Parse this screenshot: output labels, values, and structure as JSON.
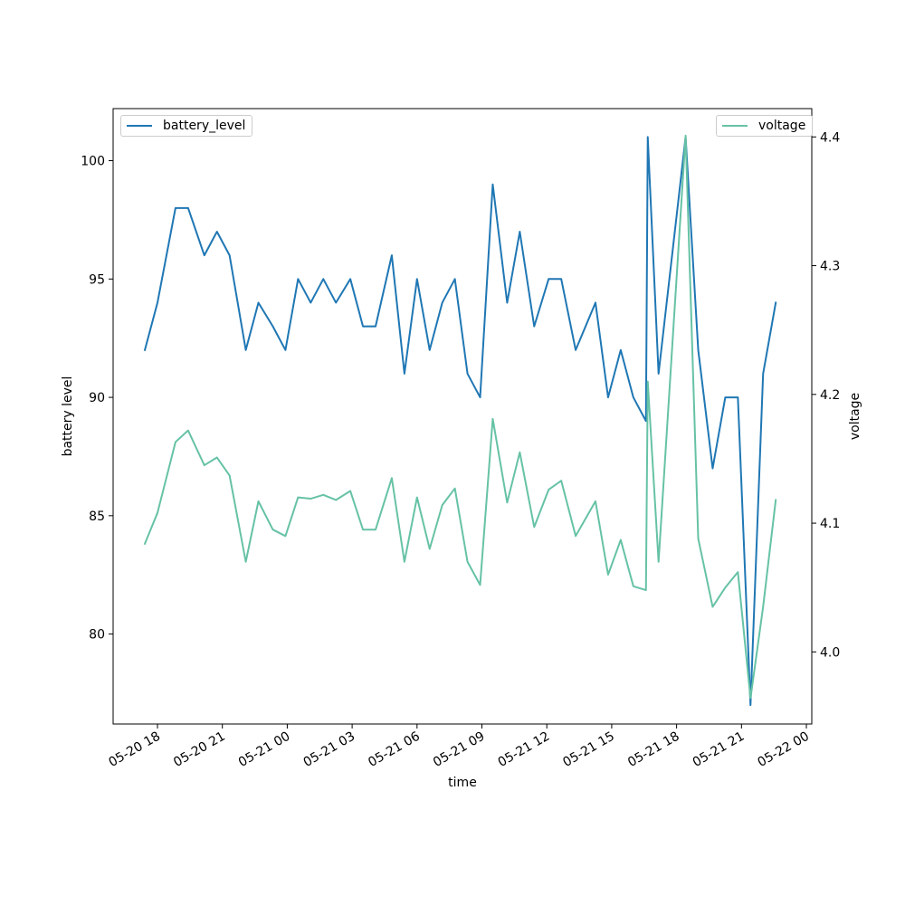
{
  "chart_data": {
    "type": "line",
    "xlabel": "time",
    "ylabel_left": "battery level",
    "ylabel_right": "voltage",
    "x_tick_labels": [
      "05-20 18",
      "05-20 21",
      "05-21 00",
      "05-21 03",
      "05-21 06",
      "05-21 09",
      "05-21 12",
      "05-21 15",
      "05-21 18",
      "05-21 21",
      "05-22 00"
    ],
    "x_ticks": [
      "2024-05-20T18:00",
      "2024-05-20T21:00",
      "2024-05-21T00:00",
      "2024-05-21T03:00",
      "2024-05-21T06:00",
      "2024-05-21T09:00",
      "2024-05-21T12:00",
      "2024-05-21T15:00",
      "2024-05-21T18:00",
      "2024-05-21T21:00",
      "2024-05-22T00:00"
    ],
    "xlim": [
      "2024-05-20T15:57",
      "2024-05-22T00:15"
    ],
    "y_left_ticks": [
      80,
      85,
      90,
      95,
      100
    ],
    "y_left_lim": [
      76.2,
      102.2
    ],
    "y_right_ticks": [
      4.0,
      4.1,
      4.2,
      4.3,
      4.4
    ],
    "y_right_lim": [
      3.944,
      4.422
    ],
    "grid": false,
    "series": [
      {
        "name": "battery_level",
        "axis": "left",
        "color": "#1f77b4",
        "legend_position": "upper left",
        "points": [
          [
            "2024-05-20T17:25",
            92
          ],
          [
            "2024-05-20T18:00",
            94
          ],
          [
            "2024-05-20T18:50",
            98
          ],
          [
            "2024-05-20T19:25",
            98
          ],
          [
            "2024-05-20T20:10",
            96
          ],
          [
            "2024-05-20T20:45",
            97
          ],
          [
            "2024-05-20T21:20",
            96
          ],
          [
            "2024-05-20T22:05",
            92
          ],
          [
            "2024-05-20T22:40",
            94
          ],
          [
            "2024-05-20T23:20",
            93
          ],
          [
            "2024-05-20T23:55",
            92
          ],
          [
            "2024-05-21T00:30",
            95
          ],
          [
            "2024-05-21T01:05",
            94
          ],
          [
            "2024-05-21T01:40",
            95
          ],
          [
            "2024-05-21T02:15",
            94
          ],
          [
            "2024-05-21T02:55",
            95
          ],
          [
            "2024-05-21T03:30",
            93
          ],
          [
            "2024-05-21T04:05",
            93
          ],
          [
            "2024-05-21T04:50",
            96
          ],
          [
            "2024-05-21T05:25",
            91
          ],
          [
            "2024-05-21T06:00",
            95
          ],
          [
            "2024-05-21T06:35",
            92
          ],
          [
            "2024-05-21T07:10",
            94
          ],
          [
            "2024-05-21T07:45",
            95
          ],
          [
            "2024-05-21T08:20",
            91
          ],
          [
            "2024-05-21T08:55",
            90
          ],
          [
            "2024-05-21T09:30",
            99
          ],
          [
            "2024-05-21T10:10",
            94
          ],
          [
            "2024-05-21T10:45",
            97
          ],
          [
            "2024-05-21T11:25",
            93
          ],
          [
            "2024-05-21T12:05",
            95
          ],
          [
            "2024-05-21T12:40",
            95
          ],
          [
            "2024-05-21T13:20",
            92
          ],
          [
            "2024-05-21T14:15",
            94
          ],
          [
            "2024-05-21T14:50",
            90
          ],
          [
            "2024-05-21T15:25",
            92
          ],
          [
            "2024-05-21T16:00",
            90
          ],
          [
            "2024-05-21T16:35",
            89
          ],
          [
            "2024-05-21T16:40",
            101
          ],
          [
            "2024-05-21T17:10",
            91
          ],
          [
            "2024-05-21T18:25",
            101
          ],
          [
            "2024-05-21T19:00",
            92
          ],
          [
            "2024-05-21T19:40",
            87
          ],
          [
            "2024-05-21T20:15",
            90
          ],
          [
            "2024-05-21T20:50",
            90
          ],
          [
            "2024-05-21T21:25",
            77
          ],
          [
            "2024-05-21T22:00",
            91
          ],
          [
            "2024-05-21T22:35",
            94
          ]
        ]
      },
      {
        "name": "voltage",
        "axis": "right",
        "color": "#66c2a5",
        "legend_position": "upper right",
        "points": [
          [
            "2024-05-20T17:25",
            4.084
          ],
          [
            "2024-05-20T18:00",
            4.108
          ],
          [
            "2024-05-20T18:50",
            4.163
          ],
          [
            "2024-05-20T19:25",
            4.172
          ],
          [
            "2024-05-20T20:10",
            4.145
          ],
          [
            "2024-05-20T20:45",
            4.151
          ],
          [
            "2024-05-20T21:20",
            4.137
          ],
          [
            "2024-05-20T22:05",
            4.07
          ],
          [
            "2024-05-20T22:40",
            4.117
          ],
          [
            "2024-05-20T23:20",
            4.095
          ],
          [
            "2024-05-20T23:55",
            4.09
          ],
          [
            "2024-05-21T00:30",
            4.12
          ],
          [
            "2024-05-21T01:05",
            4.119
          ],
          [
            "2024-05-21T01:40",
            4.122
          ],
          [
            "2024-05-21T02:15",
            4.118
          ],
          [
            "2024-05-21T02:55",
            4.125
          ],
          [
            "2024-05-21T03:30",
            4.095
          ],
          [
            "2024-05-21T04:05",
            4.095
          ],
          [
            "2024-05-21T04:50",
            4.135
          ],
          [
            "2024-05-21T05:25",
            4.07
          ],
          [
            "2024-05-21T06:00",
            4.12
          ],
          [
            "2024-05-21T06:35",
            4.08
          ],
          [
            "2024-05-21T07:10",
            4.114
          ],
          [
            "2024-05-21T07:45",
            4.127
          ],
          [
            "2024-05-21T08:20",
            4.07
          ],
          [
            "2024-05-21T08:55",
            4.052
          ],
          [
            "2024-05-21T09:30",
            4.181
          ],
          [
            "2024-05-21T10:10",
            4.116
          ],
          [
            "2024-05-21T10:45",
            4.155
          ],
          [
            "2024-05-21T11:25",
            4.097
          ],
          [
            "2024-05-21T12:05",
            4.126
          ],
          [
            "2024-05-21T12:40",
            4.133
          ],
          [
            "2024-05-21T13:20",
            4.09
          ],
          [
            "2024-05-21T14:15",
            4.117
          ],
          [
            "2024-05-21T14:50",
            4.06
          ],
          [
            "2024-05-21T15:25",
            4.087
          ],
          [
            "2024-05-21T16:00",
            4.051
          ],
          [
            "2024-05-21T16:35",
            4.048
          ],
          [
            "2024-05-21T16:40",
            4.21
          ],
          [
            "2024-05-21T17:10",
            4.07
          ],
          [
            "2024-05-21T18:25",
            4.401
          ],
          [
            "2024-05-21T19:00",
            4.088
          ],
          [
            "2024-05-21T19:40",
            4.035
          ],
          [
            "2024-05-21T20:15",
            4.05
          ],
          [
            "2024-05-21T20:50",
            4.062
          ],
          [
            "2024-05-21T21:25",
            3.964
          ],
          [
            "2024-05-21T22:00",
            4.035
          ],
          [
            "2024-05-21T22:35",
            4.118
          ]
        ]
      }
    ]
  }
}
